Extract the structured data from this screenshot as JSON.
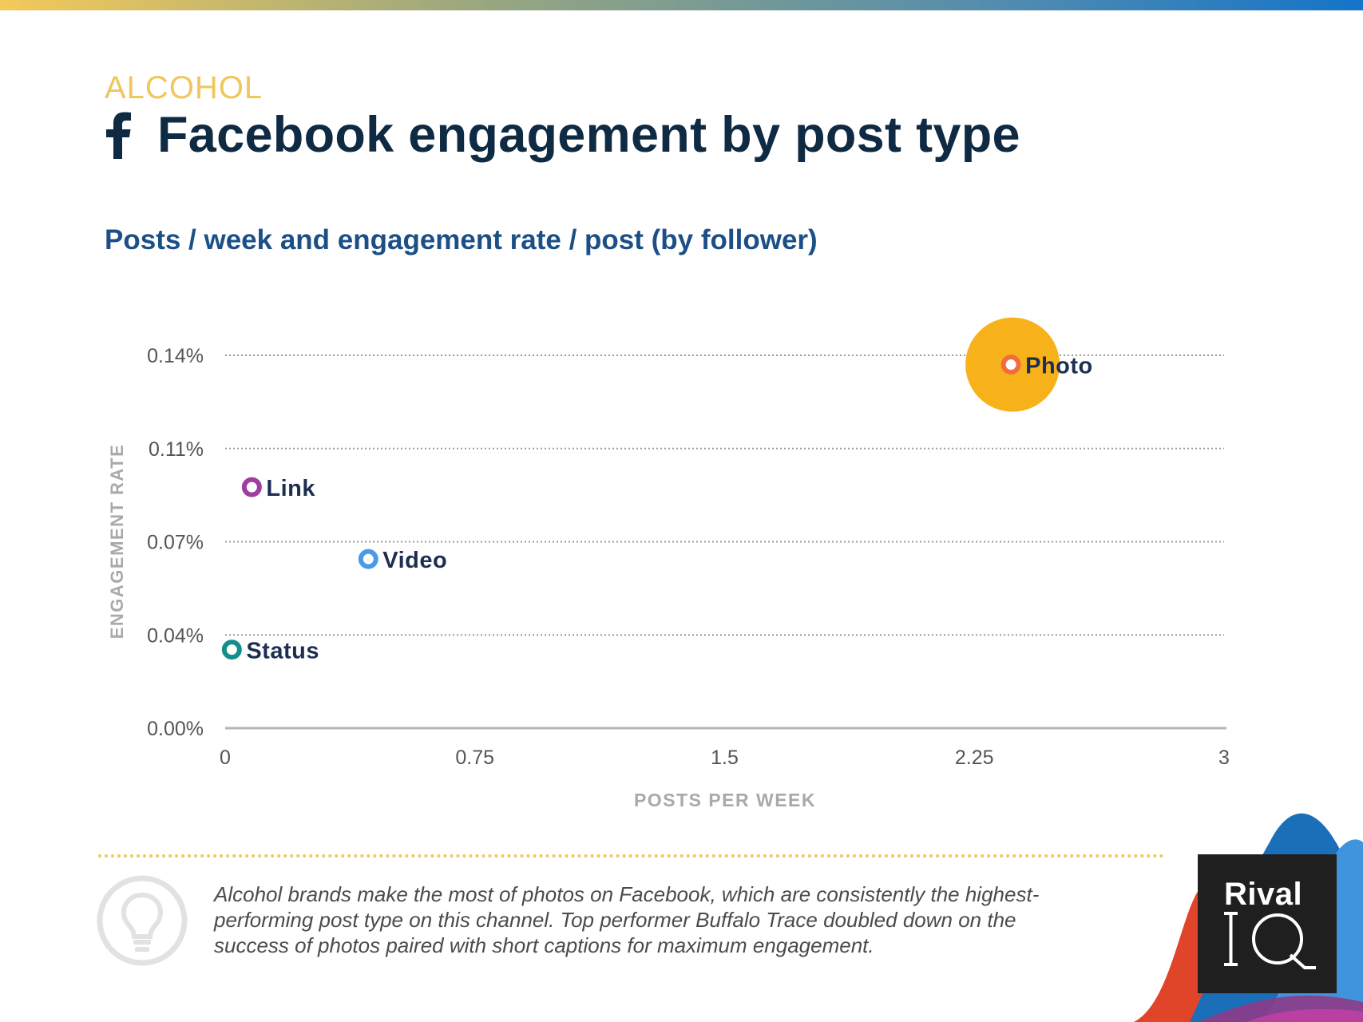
{
  "header": {
    "category": "ALCOHOL",
    "title": "Facebook engagement by post type",
    "subtitle": "Posts / week and engagement rate / post (by follower)"
  },
  "chart_data": {
    "type": "scatter",
    "title": "Posts / week and engagement rate / post (by follower)",
    "xlabel": "POSTS PER WEEK",
    "ylabel": "ENGAGEMENT RATE",
    "xlim": [
      0,
      3
    ],
    "ylim": [
      0,
      0.14
    ],
    "x_ticks": [
      {
        "value": 0,
        "label": "0"
      },
      {
        "value": 0.75,
        "label": "0.75"
      },
      {
        "value": 1.5,
        "label": "1.5"
      },
      {
        "value": 2.25,
        "label": "2.25"
      },
      {
        "value": 3,
        "label": "3"
      }
    ],
    "y_ticks": [
      {
        "value": 0,
        "label": "0.00%"
      },
      {
        "value": 0.035,
        "label": "0.04%"
      },
      {
        "value": 0.07,
        "label": "0.07%"
      },
      {
        "value": 0.105,
        "label": "0.11%"
      },
      {
        "value": 0.14,
        "label": "0.14%"
      }
    ],
    "grid": true,
    "points": [
      {
        "name": "Photo",
        "x": 2.36,
        "y": 0.1365,
        "color": "#f26d3d",
        "highlight_color": "#f7b21b",
        "highlighted": true
      },
      {
        "name": "Link",
        "x": 0.08,
        "y": 0.0905,
        "color": "#a03da0",
        "highlighted": false
      },
      {
        "name": "Video",
        "x": 0.43,
        "y": 0.0635,
        "color": "#4a9be6",
        "highlighted": false
      },
      {
        "name": "Status",
        "x": 0.02,
        "y": 0.0295,
        "color": "#138f8b",
        "highlighted": false
      }
    ]
  },
  "insight": {
    "text": "Alcohol brands make the most of photos on Facebook, which are consistently the highest-performing post type on this channel. Top performer Buffalo Trace doubled down on the success of photos paired with short captions for maximum engagement."
  },
  "brand": {
    "logo_rival": "Rival",
    "logo_iq": "IQ"
  },
  "colors": {
    "title": "#0f2a43",
    "subtitle": "#1b4f86",
    "category": "#f0c75d",
    "label": "#1e2e52"
  }
}
